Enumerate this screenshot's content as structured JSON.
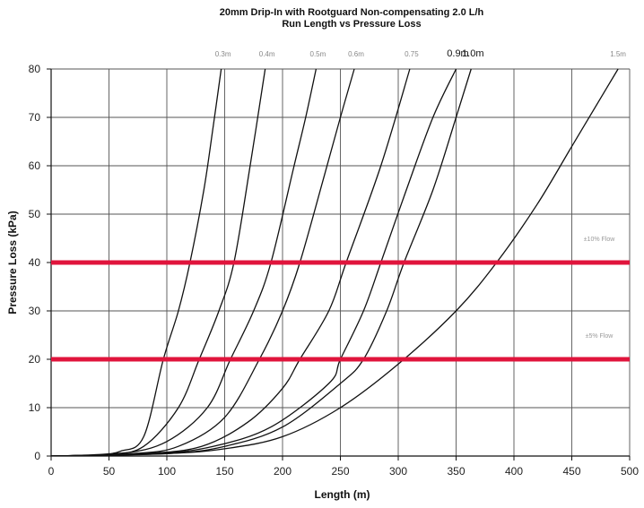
{
  "chart_data": {
    "type": "line",
    "title": "20mm Drip-In with Rootguard Non-compensating 2.0 L/h",
    "subtitle": "Run Length vs Pressure Loss",
    "xlabel": "Length (m)",
    "ylabel": "Pressure Loss (kPa)",
    "xlim": [
      0,
      500
    ],
    "ylim": [
      0,
      80
    ],
    "xticks": [
      0,
      50,
      100,
      150,
      200,
      250,
      300,
      350,
      400,
      450,
      500
    ],
    "yticks": [
      0,
      10,
      20,
      30,
      40,
      50,
      60,
      70,
      80
    ],
    "grid": true,
    "series": [
      {
        "name": "0.3m",
        "points": [
          [
            0,
            0
          ],
          [
            40,
            0.3
          ],
          [
            60,
            1
          ],
          [
            80,
            4
          ],
          [
            97,
            20
          ],
          [
            110,
            30
          ],
          [
            120,
            40
          ],
          [
            132,
            55
          ],
          [
            140,
            68
          ],
          [
            147,
            80
          ]
        ]
      },
      {
        "name": "0.4m",
        "points": [
          [
            0,
            0
          ],
          [
            50,
            0.4
          ],
          [
            80,
            2
          ],
          [
            110,
            10
          ],
          [
            128,
            20
          ],
          [
            145,
            30
          ],
          [
            158,
            40
          ],
          [
            172,
            60
          ],
          [
            185,
            80
          ]
        ]
      },
      {
        "name": "0.5m",
        "points": [
          [
            0,
            0
          ],
          [
            60,
            0.5
          ],
          [
            100,
            3
          ],
          [
            135,
            10
          ],
          [
            155,
            20
          ],
          [
            175,
            30
          ],
          [
            190,
            40
          ],
          [
            210,
            60
          ],
          [
            220,
            70
          ],
          [
            229,
            80
          ]
        ]
      },
      {
        "name": "0.6m",
        "points": [
          [
            0,
            0
          ],
          [
            70,
            0.5
          ],
          [
            110,
            2
          ],
          [
            150,
            8
          ],
          [
            180,
            20
          ],
          [
            200,
            30
          ],
          [
            215,
            40
          ],
          [
            235,
            57
          ],
          [
            250,
            70
          ],
          [
            262,
            80
          ]
        ]
      },
      {
        "name": "0.75",
        "points": [
          [
            0,
            0
          ],
          [
            80,
            0.5
          ],
          [
            130,
            2
          ],
          [
            170,
            7
          ],
          [
            200,
            14
          ],
          [
            215,
            20
          ],
          [
            240,
            30
          ],
          [
            255,
            40
          ],
          [
            285,
            60
          ],
          [
            310,
            80
          ]
        ]
      },
      {
        "name": "0.9m",
        "points": [
          [
            0,
            0
          ],
          [
            90,
            0.5
          ],
          [
            140,
            2
          ],
          [
            190,
            6
          ],
          [
            240,
            15
          ],
          [
            250,
            20
          ],
          [
            270,
            30
          ],
          [
            285,
            40
          ],
          [
            307,
            55
          ],
          [
            330,
            70
          ],
          [
            350,
            80
          ]
        ]
      },
      {
        "name": "1.0m",
        "points": [
          [
            0,
            0
          ],
          [
            100,
            0.5
          ],
          [
            150,
            2
          ],
          [
            200,
            6
          ],
          [
            250,
            15
          ],
          [
            270,
            20
          ],
          [
            290,
            30
          ],
          [
            305,
            40
          ],
          [
            330,
            55
          ],
          [
            350,
            70
          ],
          [
            363,
            80
          ]
        ]
      },
      {
        "name": "1.5m",
        "points": [
          [
            0,
            0
          ],
          [
            100,
            0.5
          ],
          [
            150,
            1.5
          ],
          [
            200,
            4
          ],
          [
            250,
            10
          ],
          [
            300,
            19
          ],
          [
            350,
            30
          ],
          [
            385,
            40
          ],
          [
            420,
            52
          ],
          [
            450,
            64
          ],
          [
            480,
            76
          ],
          [
            490,
            80
          ]
        ]
      }
    ],
    "reference_lines": [
      {
        "y": 40,
        "label": "±10% Flow",
        "color": "#e0143c"
      },
      {
        "y": 20,
        "label": "±5% Flow",
        "color": "#e0143c"
      }
    ]
  }
}
